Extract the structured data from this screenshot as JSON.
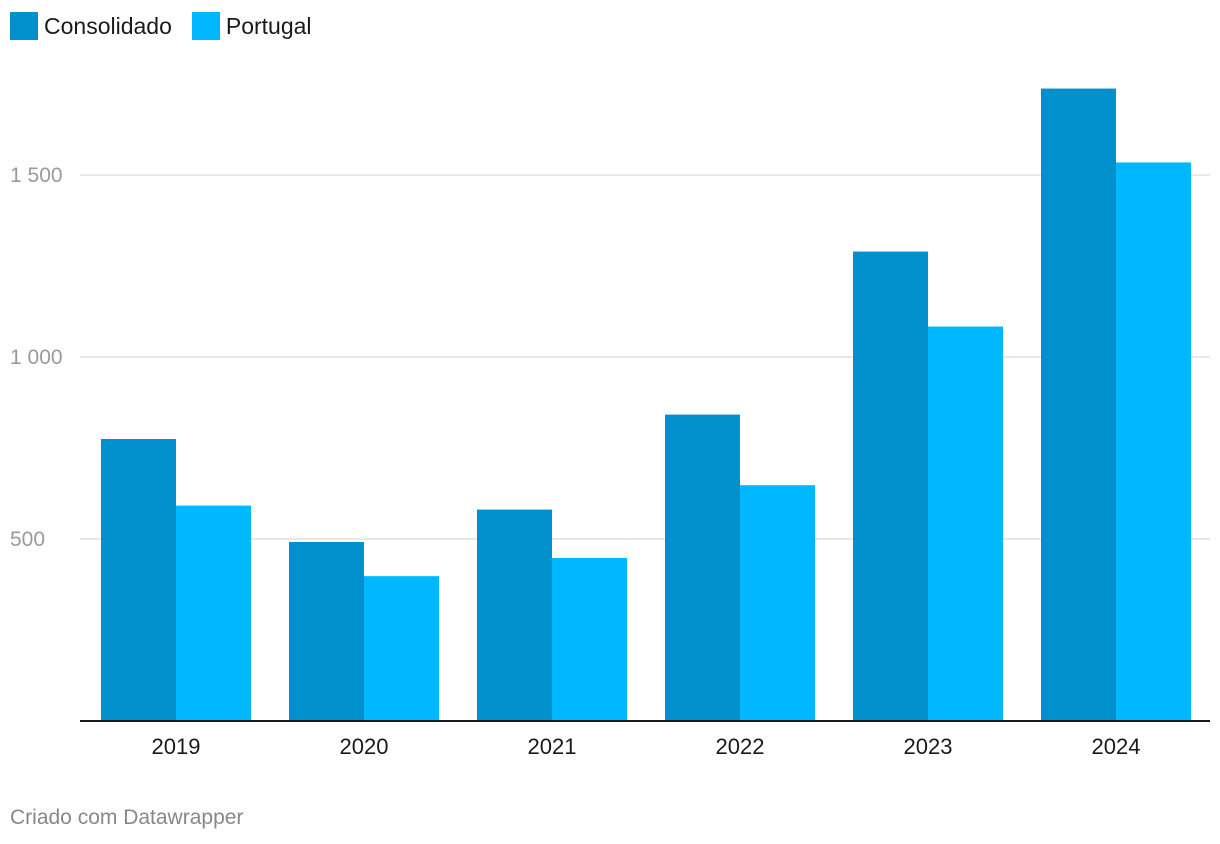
{
  "chart_data": {
    "type": "bar",
    "categories": [
      "2019",
      "2020",
      "2021",
      "2022",
      "2023",
      "2024"
    ],
    "series": [
      {
        "name": "Consolidado",
        "color": "#0090cc",
        "values": [
          775,
          492,
          581,
          842,
          1290,
          1738
        ]
      },
      {
        "name": "Portugal",
        "color": "#00b8ff",
        "values": [
          592,
          398,
          448,
          648,
          1084,
          1535
        ]
      }
    ],
    "yticks": [
      500,
      1000,
      1500
    ],
    "ytick_labels": [
      "500",
      "1 000",
      "1 500"
    ],
    "ylim": [
      0,
      1800
    ],
    "grid": true,
    "legend": "top-left"
  },
  "footer": {
    "credit": "Criado com Datawrapper"
  }
}
